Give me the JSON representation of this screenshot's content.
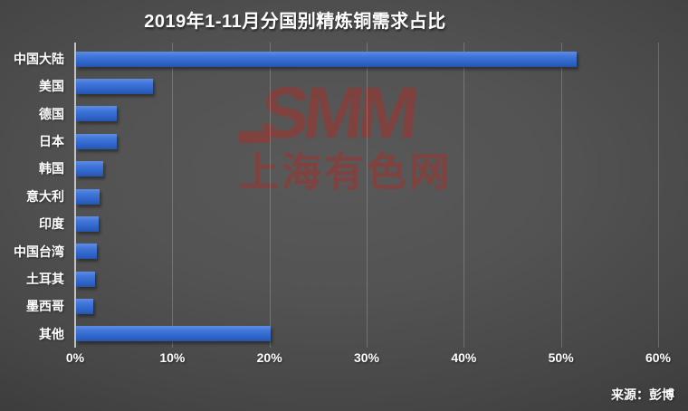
{
  "chart_data": {
    "type": "bar",
    "orientation": "horizontal",
    "title": "2019年1-11月分国别精炼铜需求占比",
    "categories": [
      "中国大陆",
      "美国",
      "德国",
      "日本",
      "韩国",
      "意大利",
      "印度",
      "中国台湾",
      "土耳其",
      "墨西哥",
      "其他"
    ],
    "values": [
      51.5,
      7.9,
      4.2,
      4.2,
      2.8,
      2.4,
      2.3,
      2.1,
      2.0,
      1.8,
      20.0
    ],
    "unit": "%",
    "xlabel": "",
    "ylabel": "",
    "x_ticks": [
      "0%",
      "10%",
      "20%",
      "30%",
      "40%",
      "50%",
      "60%"
    ],
    "xlim": [
      0,
      60
    ],
    "grid": true,
    "legend": "none",
    "bar_color": "#3a70d6"
  },
  "watermark": {
    "logo_text": "SMM",
    "site_name": "上海有色网",
    "color": "#7b4343"
  },
  "source_label": "来源：彭博",
  "colors": {
    "background_center": "#585858",
    "background_edge": "#343434",
    "text": "#ffffff",
    "gridline": "#7a7a7a",
    "bar": "#3a70d6"
  }
}
